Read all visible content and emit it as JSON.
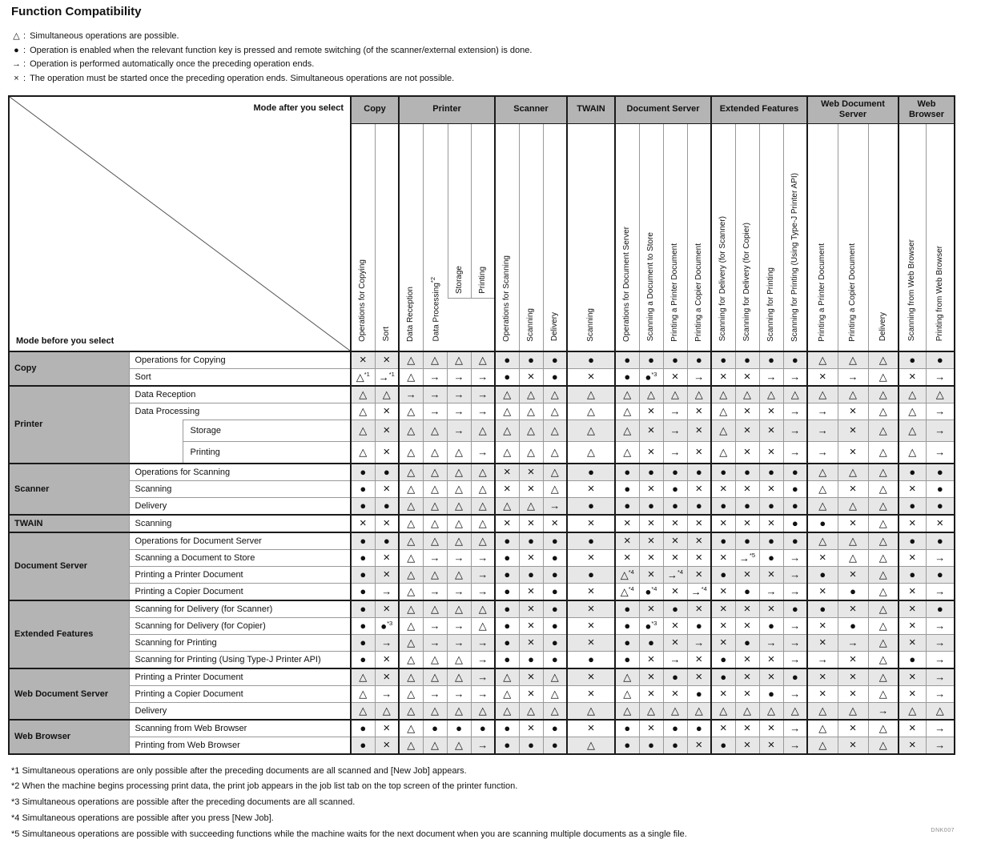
{
  "title": "Function Compatibility",
  "doc_id": "DNK007",
  "symbols": {
    "t": "△",
    "b": "●",
    "a": "→",
    "x": "×"
  },
  "legend_separator": ":",
  "legend": [
    {
      "symbol": "t",
      "icon_name": "triangle-icon",
      "text": "Simultaneous operations are possible."
    },
    {
      "symbol": "b",
      "icon_name": "filled-circle-icon",
      "text": "Operation is enabled when the relevant function key is pressed and remote switching (of the scanner/external extension) is done."
    },
    {
      "symbol": "a",
      "icon_name": "right-arrow-icon",
      "text": "Operation is performed automatically once the preceding operation ends."
    },
    {
      "symbol": "x",
      "icon_name": "cross-icon",
      "text": "The operation must be started once the preceding operation ends. Simultaneous operations are not possible."
    }
  ],
  "corner": {
    "top_right": "Mode after you select",
    "bottom_left": "Mode before you select"
  },
  "col_groups": [
    {
      "label": "Copy",
      "span": 2
    },
    {
      "label": "Printer",
      "span": 4
    },
    {
      "label": "Scanner",
      "span": 3
    },
    {
      "label": "TWAIN",
      "span": 1
    },
    {
      "label": "Document Server",
      "span": 4
    },
    {
      "label": "Extended Features",
      "span": 4
    },
    {
      "label": "Web Document Server",
      "span": 3
    },
    {
      "label": "Web Browser",
      "span": 2
    }
  ],
  "columns": [
    "Operations for Copying",
    "Sort",
    "Data Reception",
    "Data Processing*2",
    "Storage",
    "Printing",
    "Operations for Scanning",
    "Scanning",
    "Delivery",
    "Scanning",
    "Operations for Document Server",
    "Scanning a Document to Store",
    "Printing a Printer Document",
    "Printing a Copier Document",
    "Scanning for Delivery (for Scanner)",
    "Scanning for Delivery (for Copier)",
    "Scanning for Printing",
    "Scanning for Printing (Using Type-J Printer API)",
    "Printing a Printer Document",
    "Printing a Copier Document",
    "Delivery",
    "Scanning from Web Browser",
    "Printing from Web Browser"
  ],
  "row_groups": [
    {
      "label": "Copy",
      "rows": [
        {
          "label": "Operations for Copying",
          "cells": [
            "x",
            "x",
            "t",
            "t",
            "t",
            "t",
            "b",
            "b",
            "b",
            "b",
            "b",
            "b",
            "b",
            "b",
            "b",
            "b",
            "b",
            "b",
            "t",
            "t",
            "t",
            "b",
            "b"
          ]
        },
        {
          "label": "Sort",
          "cells": [
            "t1",
            "a1",
            "t",
            "a",
            "a",
            "a",
            "b",
            "x",
            "b",
            "x",
            "b",
            "b3",
            "x",
            "a",
            "x",
            "x",
            "a",
            "a",
            "x",
            "a",
            "t",
            "x",
            "a"
          ]
        }
      ]
    },
    {
      "label": "Printer",
      "rows": [
        {
          "label": "Data Reception",
          "cells": [
            "t",
            "t",
            "a",
            "a",
            "a",
            "a",
            "t",
            "t",
            "t",
            "t",
            "t",
            "t",
            "t",
            "t",
            "t",
            "t",
            "t",
            "t",
            "t",
            "t",
            "t",
            "t",
            "t"
          ]
        },
        {
          "label": "Data Processing",
          "cells": [
            "t",
            "x",
            "t",
            "a",
            "a",
            "a",
            "t",
            "t",
            "t",
            "t",
            "t",
            "x",
            "a",
            "x",
            "t",
            "x",
            "x",
            "a",
            "a",
            "x",
            "t",
            "t",
            "a"
          ]
        },
        {
          "label": "Storage",
          "sub": true,
          "cells": [
            "t",
            "x",
            "t",
            "t",
            "a",
            "t",
            "t",
            "t",
            "t",
            "t",
            "t",
            "x",
            "a",
            "x",
            "t",
            "x",
            "x",
            "a",
            "a",
            "x",
            "t",
            "t",
            "a"
          ]
        },
        {
          "label": "Printing",
          "sub": true,
          "cells": [
            "t",
            "x",
            "t",
            "t",
            "t",
            "a",
            "t",
            "t",
            "t",
            "t",
            "t",
            "x",
            "a",
            "x",
            "t",
            "x",
            "x",
            "a",
            "a",
            "x",
            "t",
            "t",
            "a"
          ]
        }
      ]
    },
    {
      "label": "Scanner",
      "rows": [
        {
          "label": "Operations for Scanning",
          "cells": [
            "b",
            "b",
            "t",
            "t",
            "t",
            "t",
            "x",
            "x",
            "t",
            "b",
            "b",
            "b",
            "b",
            "b",
            "b",
            "b",
            "b",
            "b",
            "t",
            "t",
            "t",
            "b",
            "b"
          ]
        },
        {
          "label": "Scanning",
          "cells": [
            "b",
            "x",
            "t",
            "t",
            "t",
            "t",
            "x",
            "x",
            "t",
            "x",
            "b",
            "x",
            "b",
            "x",
            "x",
            "x",
            "x",
            "b",
            "t",
            "x",
            "t",
            "x",
            "b"
          ]
        },
        {
          "label": "Delivery",
          "cells": [
            "b",
            "b",
            "t",
            "t",
            "t",
            "t",
            "t",
            "t",
            "a",
            "b",
            "b",
            "b",
            "b",
            "b",
            "b",
            "b",
            "b",
            "b",
            "t",
            "t",
            "t",
            "b",
            "b"
          ]
        }
      ]
    },
    {
      "label": "TWAIN",
      "rows": [
        {
          "label": "Scanning",
          "cells": [
            "x",
            "x",
            "t",
            "t",
            "t",
            "t",
            "x",
            "x",
            "x",
            "x",
            "x",
            "x",
            "x",
            "x",
            "x",
            "x",
            "x",
            "b",
            "b",
            "x",
            "t",
            "x",
            "x"
          ]
        }
      ]
    },
    {
      "label": "Document Server",
      "rows": [
        {
          "label": "Operations for Document Server",
          "cells": [
            "b",
            "b",
            "t",
            "t",
            "t",
            "t",
            "b",
            "b",
            "b",
            "b",
            "x",
            "x",
            "x",
            "x",
            "b",
            "b",
            "b",
            "b",
            "t",
            "t",
            "t",
            "b",
            "b"
          ]
        },
        {
          "label": "Scanning a Document to Store",
          "cells": [
            "b",
            "x",
            "t",
            "a",
            "a",
            "a",
            "b",
            "x",
            "b",
            "x",
            "x",
            "x",
            "x",
            "x",
            "x",
            "a5",
            "b",
            "a",
            "x",
            "t",
            "t",
            "x",
            "a"
          ]
        },
        {
          "label": "Printing a Printer Document",
          "cells": [
            "b",
            "x",
            "t",
            "t",
            "t",
            "a",
            "b",
            "b",
            "b",
            "b",
            "t4",
            "x",
            "a4",
            "x",
            "b",
            "x",
            "x",
            "a",
            "b",
            "x",
            "t",
            "b",
            "b"
          ]
        },
        {
          "label": "Printing a Copier Document",
          "cells": [
            "b",
            "a",
            "t",
            "a",
            "a",
            "a",
            "b",
            "x",
            "b",
            "x",
            "t4",
            "b4",
            "x",
            "a4",
            "x",
            "b",
            "a",
            "a",
            "x",
            "b",
            "t",
            "x",
            "a"
          ]
        }
      ]
    },
    {
      "label": "Extended Features",
      "rows": [
        {
          "label": "Scanning for Delivery (for Scanner)",
          "cells": [
            "b",
            "x",
            "t",
            "t",
            "t",
            "t",
            "b",
            "x",
            "b",
            "x",
            "b",
            "x",
            "b",
            "x",
            "x",
            "x",
            "x",
            "b",
            "b",
            "x",
            "t",
            "x",
            "b"
          ]
        },
        {
          "label": "Scanning for Delivery (for Copier)",
          "cells": [
            "b",
            "b3",
            "t",
            "a",
            "a",
            "t",
            "b",
            "x",
            "b",
            "x",
            "b",
            "b3",
            "x",
            "b",
            "x",
            "x",
            "b",
            "a",
            "x",
            "b",
            "t",
            "x",
            "a"
          ]
        },
        {
          "label": "Scanning for Printing",
          "cells": [
            "b",
            "a",
            "t",
            "a",
            "a",
            "a",
            "b",
            "x",
            "b",
            "x",
            "b",
            "b",
            "x",
            "a",
            "x",
            "b",
            "a",
            "a",
            "x",
            "a",
            "t",
            "x",
            "a"
          ]
        },
        {
          "label": "Scanning for Printing (Using Type-J Printer API)",
          "cells": [
            "b",
            "x",
            "t",
            "t",
            "t",
            "a",
            "b",
            "b",
            "b",
            "b",
            "b",
            "x",
            "a",
            "x",
            "b",
            "x",
            "x",
            "a",
            "a",
            "x",
            "t",
            "b",
            "a"
          ]
        }
      ]
    },
    {
      "label": "Web Document Server",
      "rows": [
        {
          "label": "Printing a Printer Document",
          "cells": [
            "t",
            "x",
            "t",
            "t",
            "t",
            "a",
            "t",
            "x",
            "t",
            "x",
            "t",
            "x",
            "b",
            "x",
            "b",
            "x",
            "x",
            "b",
            "x",
            "x",
            "t",
            "x",
            "a"
          ]
        },
        {
          "label": "Printing a Copier Document",
          "cells": [
            "t",
            "a",
            "t",
            "a",
            "a",
            "a",
            "t",
            "x",
            "t",
            "x",
            "t",
            "x",
            "x",
            "b",
            "x",
            "x",
            "b",
            "a",
            "x",
            "x",
            "t",
            "x",
            "a"
          ]
        },
        {
          "label": "Delivery",
          "cells": [
            "t",
            "t",
            "t",
            "t",
            "t",
            "t",
            "t",
            "t",
            "t",
            "t",
            "t",
            "t",
            "t",
            "t",
            "t",
            "t",
            "t",
            "t",
            "t",
            "t",
            "a",
            "t",
            "t"
          ]
        }
      ]
    },
    {
      "label": "Web Browser",
      "rows": [
        {
          "label": "Scanning from Web Browser",
          "cells": [
            "b",
            "x",
            "t",
            "b",
            "b",
            "b",
            "b",
            "x",
            "b",
            "x",
            "b",
            "x",
            "b",
            "b",
            "x",
            "x",
            "x",
            "a",
            "t",
            "x",
            "t",
            "x",
            "a"
          ]
        },
        {
          "label": "Printing from Web Browser",
          "cells": [
            "b",
            "x",
            "t",
            "t",
            "t",
            "a",
            "b",
            "b",
            "b",
            "t",
            "b",
            "b",
            "b",
            "x",
            "b",
            "x",
            "x",
            "a",
            "t",
            "x",
            "t",
            "x",
            "a"
          ]
        }
      ]
    }
  ],
  "footnotes": [
    "*1 Simultaneous operations are only possible after the preceding documents are all scanned and [New Job] appears.",
    "*2 When the machine begins processing print data, the print job appears in the job list tab on the top screen of the printer function.",
    "*3 Simultaneous operations are possible after the preceding documents are all scanned.",
    "*4 Simultaneous operations are possible after you press [New Job].",
    "*5 Simultaneous operations are possible with succeeding functions while the machine waits for the next document when you are scanning multiple documents as a single file."
  ]
}
